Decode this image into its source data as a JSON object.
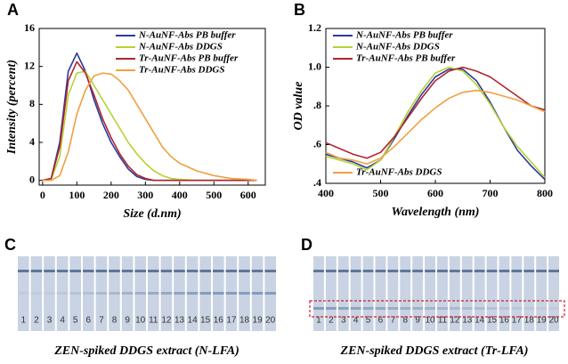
{
  "chart_data": [
    {
      "type": "line",
      "label": "A",
      "xlabel": "Size (d.nm)",
      "ylabel": "Intensity (percent)",
      "x": [
        0,
        25,
        50,
        75,
        100,
        125,
        150,
        175,
        200,
        225,
        250,
        275,
        300,
        325,
        350,
        375,
        400,
        450,
        500,
        550,
        600,
        625
      ],
      "xlim": [
        -10,
        650
      ],
      "xticks": [
        0,
        100,
        200,
        300,
        400,
        500,
        600
      ],
      "ylim": [
        -0.5,
        16
      ],
      "yticks": [
        0,
        4,
        8,
        12,
        16
      ],
      "legend": "upper right",
      "series": [
        {
          "name": "N-AuNF-Abs PB buffer",
          "color": "#2b3b9a",
          "values": [
            0,
            0.2,
            4,
            11.5,
            13.4,
            11.5,
            8.5,
            6,
            4,
            2.5,
            1.2,
            0.4,
            0.1,
            0,
            0,
            0,
            0,
            0,
            0,
            0,
            0,
            0
          ]
        },
        {
          "name": "N-AuNF-Abs DDGS",
          "color": "#b5d334",
          "values": [
            0,
            0.1,
            2.5,
            9,
            11.3,
            11.5,
            10,
            8.5,
            7,
            5.5,
            4,
            2.8,
            1.8,
            1,
            0.5,
            0.2,
            0.1,
            0,
            0,
            0,
            0,
            0
          ]
        },
        {
          "name": "Tr-AuNF-Abs PB buffer",
          "color": "#b0252f",
          "values": [
            0,
            0.2,
            3.5,
            10.5,
            12.5,
            11.3,
            9,
            6.5,
            4.5,
            2.8,
            1.5,
            0.6,
            0.2,
            0,
            0,
            0,
            0,
            0,
            0,
            0,
            0,
            0
          ]
        },
        {
          "name": "Tr-AuNF-Abs DDGS",
          "color": "#f0a040",
          "values": [
            0,
            0,
            0.5,
            3,
            7,
            9.5,
            11,
            11.3,
            11.2,
            10.5,
            9.5,
            8,
            6.5,
            5,
            3.5,
            2.5,
            1.8,
            1,
            0.5,
            0.2,
            0.1,
            0
          ]
        }
      ]
    },
    {
      "type": "line",
      "label": "B",
      "xlabel": "Wavelength (nm)",
      "ylabel": "OD value",
      "x": [
        400,
        425,
        450,
        475,
        500,
        525,
        550,
        575,
        600,
        625,
        650,
        675,
        700,
        725,
        750,
        775,
        800
      ],
      "xlim": [
        400,
        800
      ],
      "xticks": [
        400,
        500,
        600,
        700,
        800
      ],
      "ylim": [
        0.4,
        1.2
      ],
      "yticks": [
        {
          "value": 0.4,
          "label": ".4"
        },
        {
          "value": 0.6,
          "label": ".6"
        },
        {
          "value": 0.8,
          "label": ".8"
        },
        {
          "value": 1.0,
          "label": "1.0"
        },
        {
          "value": 1.2,
          "label": "1.2"
        }
      ],
      "legend": "upper left",
      "series": [
        {
          "name": "N-AuNF-Abs PB buffer",
          "color": "#2b3b9a",
          "values": [
            0.55,
            0.53,
            0.51,
            0.48,
            0.52,
            0.63,
            0.75,
            0.86,
            0.95,
            0.99,
            0.99,
            0.93,
            0.82,
            0.69,
            0.57,
            0.49,
            0.42
          ]
        },
        {
          "name": "N-AuNF-Abs DDGS",
          "color": "#b5d334",
          "values": [
            0.54,
            0.52,
            0.5,
            0.47,
            0.52,
            0.64,
            0.77,
            0.88,
            0.97,
            1.0,
            0.98,
            0.91,
            0.81,
            0.69,
            0.59,
            0.51,
            0.43
          ]
        },
        {
          "name": "Tr-AuNF-Abs PB buffer",
          "color": "#b0252f",
          "values": [
            0.61,
            0.58,
            0.55,
            0.53,
            0.56,
            0.64,
            0.74,
            0.84,
            0.93,
            0.98,
            1.0,
            0.98,
            0.95,
            0.9,
            0.85,
            0.8,
            0.78
          ]
        },
        {
          "name": "Tr-AuNF-Abs DDGS",
          "color": "#f0a040",
          "values": [
            0.56,
            0.53,
            0.52,
            0.5,
            0.53,
            0.59,
            0.66,
            0.73,
            0.79,
            0.84,
            0.87,
            0.88,
            0.87,
            0.85,
            0.83,
            0.8,
            0.77
          ]
        }
      ]
    }
  ],
  "panels": [
    {
      "label": "C",
      "strips": [
        1,
        2,
        3,
        4,
        5,
        6,
        7,
        8,
        9,
        10,
        11,
        12,
        13,
        14,
        15,
        16,
        17,
        18,
        19,
        20
      ],
      "caption": "ZEN-spiked DDGS extract (N-LFA)"
    },
    {
      "label": "D",
      "strips": [
        1,
        2,
        3,
        4,
        5,
        6,
        7,
        8,
        9,
        10,
        11,
        12,
        13,
        14,
        15,
        16,
        17,
        18,
        19,
        20
      ],
      "caption": "ZEN-spiked DDGS extract (Tr-LFA)"
    }
  ]
}
